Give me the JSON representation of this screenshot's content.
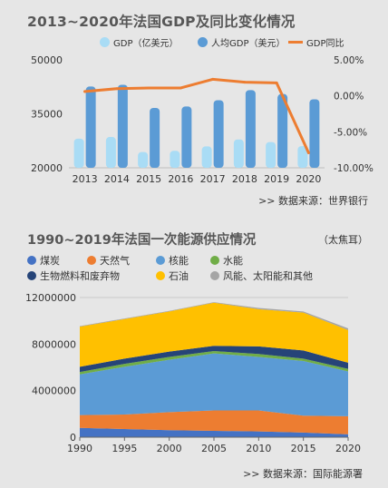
{
  "header": {
    "title1": "2013~2020年法国GDP及同比变化情况",
    "title2": "1990~2019年法国一次能源供应情况",
    "unit2": "（太焦耳）",
    "source1": ">>  数据来源：世界银行",
    "source2": ">>  数据来源：国际能源署"
  },
  "legend1": [
    {
      "label": "GDP（亿美元）",
      "color": "#a9dcf5",
      "kind": "bar"
    },
    {
      "label": "人均GDP（美元）",
      "color": "#5b9bd5",
      "kind": "bar"
    },
    {
      "label": "GDP同比",
      "color": "#ed7d31",
      "kind": "line"
    }
  ],
  "legend2": [
    {
      "label": "煤炭",
      "color": "#4472c4"
    },
    {
      "label": "天然气",
      "color": "#ed7d31"
    },
    {
      "label": "核能",
      "color": "#5b9bd5"
    },
    {
      "label": "水能",
      "color": "#70ad47"
    },
    {
      "label": "生物燃料和废弃物",
      "color": "#264478"
    },
    {
      "label": "石油",
      "color": "#ffc000"
    },
    {
      "label": "风能、太阳能和其他",
      "color": "#a5a5a5"
    }
  ],
  "chart_data": [
    {
      "type": "bar",
      "title": "2013~2020年法国GDP及同比变化情况",
      "categories": [
        "2013",
        "2014",
        "2015",
        "2016",
        "2017",
        "2018",
        "2019",
        "2020"
      ],
      "series": [
        {
          "name": "GDP（亿美元）",
          "axis": "left",
          "values": [
            28110,
            28560,
            24390,
            24720,
            25950,
            27880,
            27160,
            26030
          ],
          "color": "#a9dcf5"
        },
        {
          "name": "人均GDP（美元）",
          "axis": "left",
          "values": [
            42590,
            43070,
            36650,
            37040,
            38780,
            41590,
            40500,
            39030
          ],
          "color": "#5b9bd5"
        },
        {
          "name": "GDP同比",
          "axis": "right",
          "type": "line",
          "values": [
            0.6,
            1.0,
            1.1,
            1.1,
            2.3,
            1.9,
            1.8,
            -7.9
          ],
          "color": "#ed7d31"
        }
      ],
      "ylim_left": [
        20000,
        50000
      ],
      "yticks_left": [
        "20000",
        "35000",
        "50000"
      ],
      "ylim_right": [
        -10,
        5
      ],
      "yticks_right": [
        "5.00%",
        "0.00%",
        "-5.00%",
        "-10.00%"
      ],
      "legend_position": "top",
      "grid": false
    },
    {
      "type": "area",
      "title": "1990~2019年法国一次能源供应情况",
      "unit": "（太焦耳）",
      "x": [
        1990,
        1995,
        2000,
        2005,
        2010,
        2015,
        2020
      ],
      "xticks": [
        "1990",
        "1995",
        "2000",
        "2005",
        "2010",
        "2015",
        "2020"
      ],
      "stacked": true,
      "series": [
        {
          "name": "煤炭",
          "values": [
            800000,
            700000,
            600000,
            550000,
            500000,
            400000,
            250000
          ],
          "color": "#4472c4"
        },
        {
          "name": "天然气",
          "values": [
            1100000,
            1250000,
            1550000,
            1750000,
            1800000,
            1450000,
            1550000
          ],
          "color": "#ed7d31"
        },
        {
          "name": "核能",
          "values": [
            3500000,
            4100000,
            4500000,
            4900000,
            4600000,
            4700000,
            3850000
          ],
          "color": "#5b9bd5"
        },
        {
          "name": "水能",
          "values": [
            200000,
            250000,
            250000,
            200000,
            250000,
            200000,
            220000
          ],
          "color": "#70ad47"
        },
        {
          "name": "生物燃料和废弃物",
          "values": [
            450000,
            450000,
            450000,
            450000,
            650000,
            700000,
            530000
          ],
          "color": "#264478"
        },
        {
          "name": "石油",
          "values": [
            3450000,
            3400000,
            3450000,
            3700000,
            3200000,
            3250000,
            2800000
          ],
          "color": "#ffc000"
        },
        {
          "name": "风能、太阳能和其他",
          "values": [
            50000,
            50000,
            50000,
            50000,
            100000,
            100000,
            150000
          ],
          "color": "#a5a5a5"
        }
      ],
      "ylim": [
        0,
        12000000
      ],
      "yticks": [
        "0",
        "4000000",
        "8000000",
        "12000000"
      ],
      "legend_position": "top",
      "grid": true
    }
  ]
}
